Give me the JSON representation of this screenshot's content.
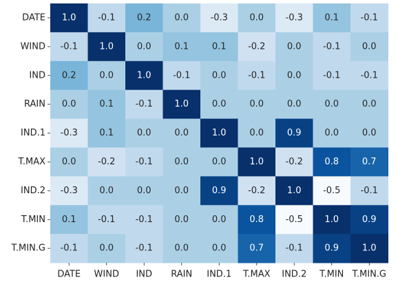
{
  "chart_data": {
    "type": "heatmap",
    "variables": [
      "DATE",
      "WIND",
      "IND",
      "RAIN",
      "IND.1",
      "T.MAX",
      "IND.2",
      "T.MIN",
      "T.MIN.G"
    ],
    "matrix": [
      [
        1.0,
        -0.1,
        0.2,
        -0.0,
        -0.3,
        0.0,
        -0.3,
        0.1,
        -0.1
      ],
      [
        -0.1,
        1.0,
        -0.0,
        0.1,
        0.1,
        -0.2,
        0.0,
        -0.1,
        0.0
      ],
      [
        0.2,
        -0.0,
        1.0,
        -0.1,
        -0.0,
        -0.1,
        -0.0,
        -0.1,
        -0.1
      ],
      [
        -0.0,
        0.1,
        -0.1,
        1.0,
        0.0,
        -0.0,
        0.0,
        0.0,
        0.0
      ],
      [
        -0.3,
        0.1,
        -0.0,
        0.0,
        1.0,
        -0.0,
        0.9,
        -0.0,
        -0.0
      ],
      [
        0.0,
        -0.2,
        -0.1,
        -0.0,
        -0.0,
        1.0,
        -0.2,
        0.8,
        0.7
      ],
      [
        -0.3,
        0.0,
        -0.0,
        0.0,
        0.9,
        -0.2,
        1.0,
        -0.5,
        -0.1
      ],
      [
        0.1,
        -0.1,
        -0.1,
        0.0,
        -0.0,
        0.8,
        -0.5,
        1.0,
        0.9
      ],
      [
        -0.1,
        0.0,
        -0.1,
        0.0,
        -0.0,
        0.7,
        -0.1,
        0.9,
        1.0
      ]
    ],
    "value_range": [
      -0.5,
      1.0
    ],
    "colormap": "Blues",
    "colorbar": false,
    "legend": "none",
    "grid": false,
    "title": "",
    "xlabel": "",
    "ylabel": ""
  }
}
